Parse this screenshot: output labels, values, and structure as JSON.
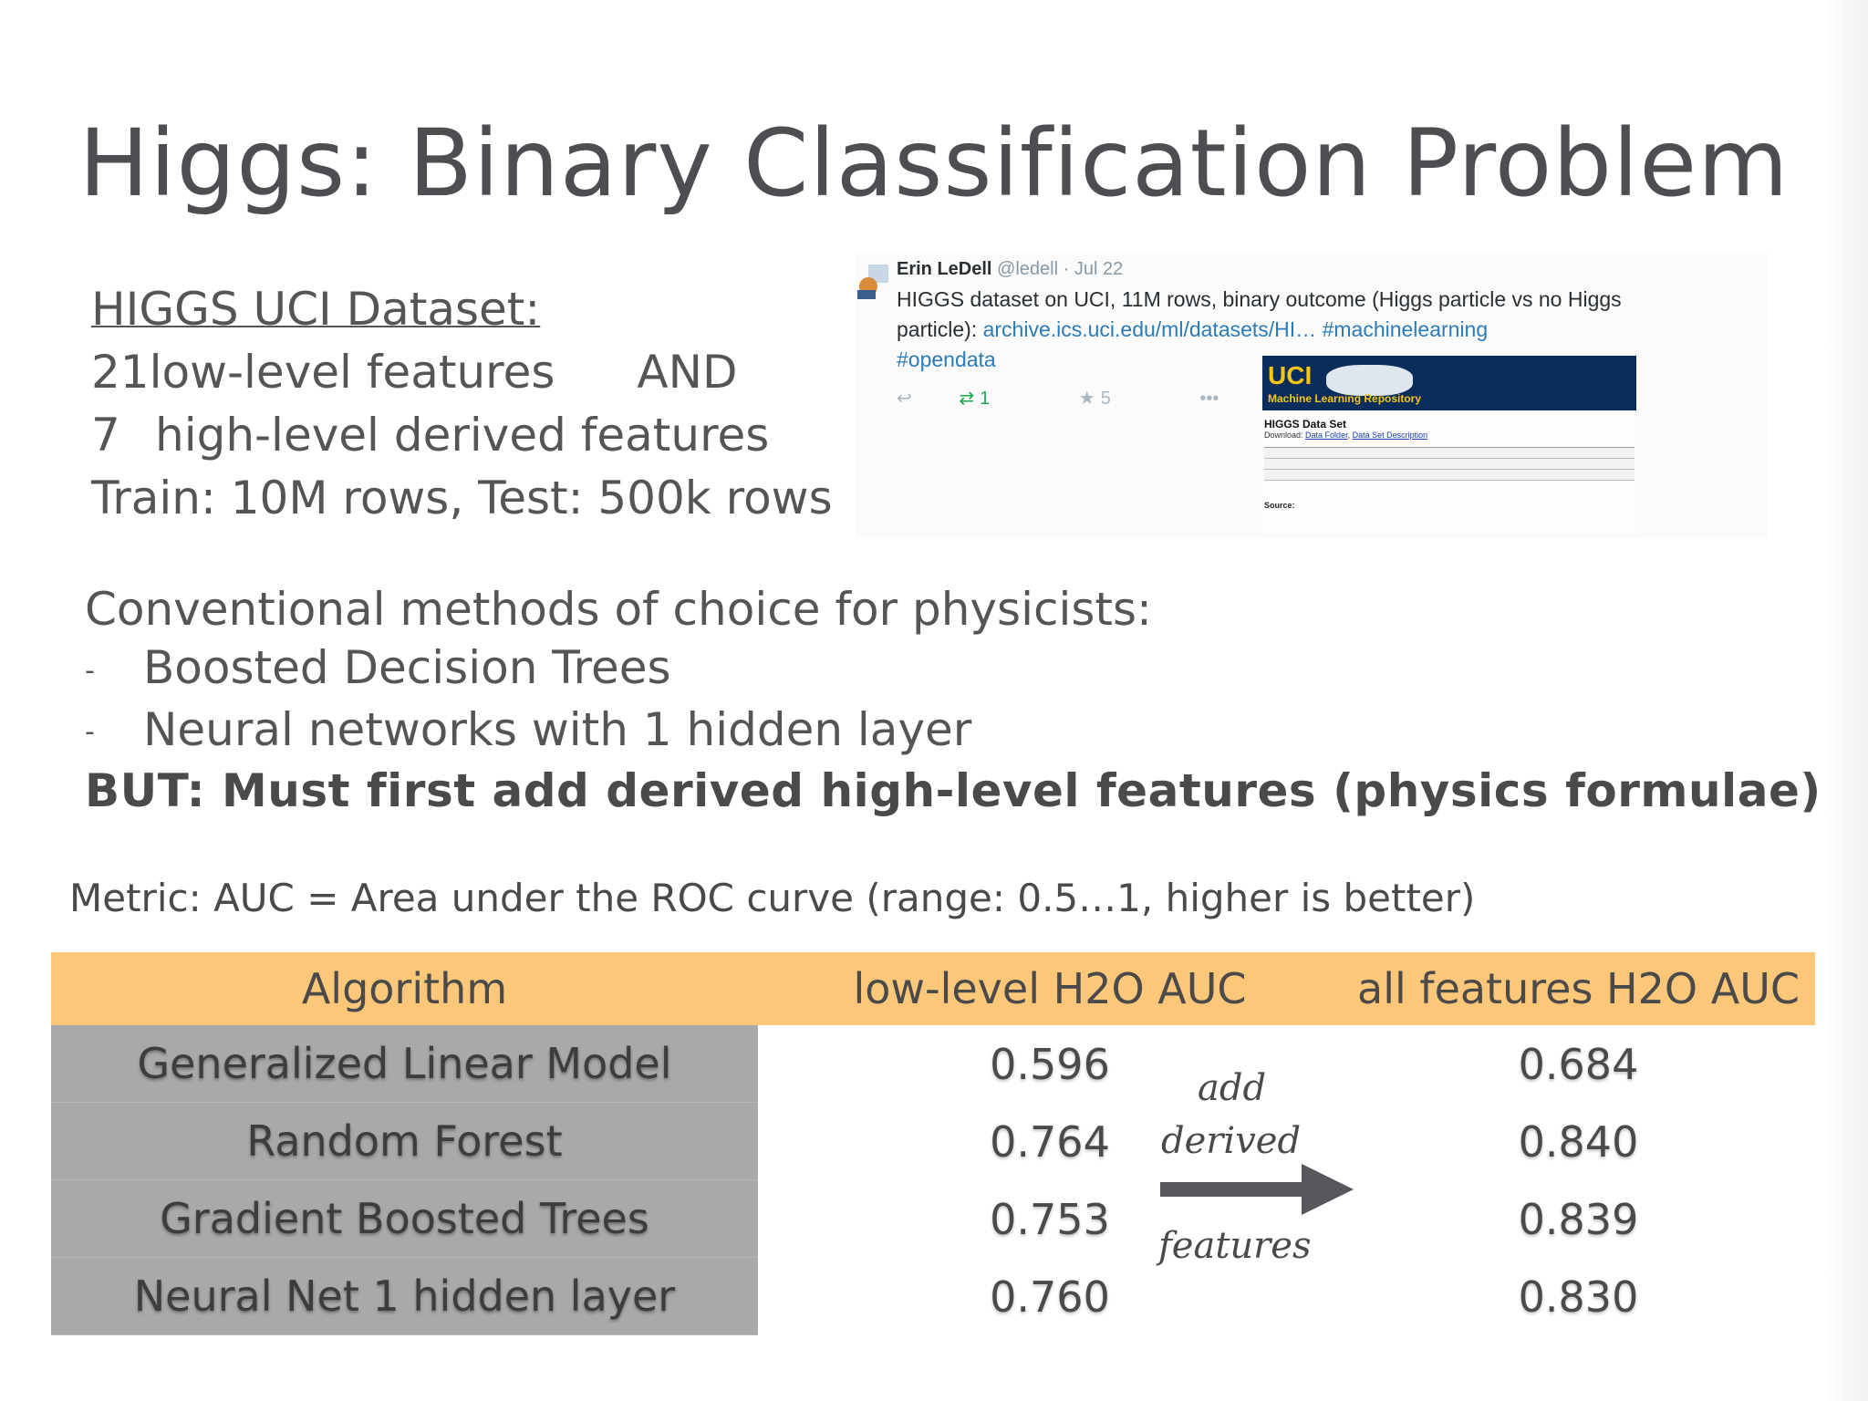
{
  "title": "Higgs: Binary Classification Problem",
  "dataset": {
    "heading": "HIGGS UCI Dataset:",
    "line1_num": "21",
    "line1_text": "low-level features",
    "line1_and": "AND",
    "line2_num": "7",
    "line2_text": "high-level derived features",
    "line3": "Train: 10M rows, Test: 500k rows"
  },
  "methods": {
    "intro": "Conventional methods of choice for physicists:",
    "bullets": [
      "Boosted Decision Trees",
      "Neural networks with 1 hidden layer"
    ],
    "bullet_marker": "-",
    "but": "BUT: Must first add derived high-level features (physics formulae)"
  },
  "metric": "Metric: AUC = Area under the ROC curve (range: 0.5…1, higher is better)",
  "tweet": {
    "name": "Erin LeDell",
    "handle": "@ledell",
    "date": "Jul 22",
    "text": "HIGGS dataset on UCI, 11M rows, binary outcome (Higgs particle vs no Higgs particle):",
    "link": "archive.ics.uci.edu/ml/datasets/HI…",
    "hashtag1": "#machinelearning",
    "hashtag2": "#opendata",
    "retweets": "1",
    "favorites": "5",
    "uci": {
      "logo": "UCI",
      "repo": "Machine Learning Repository",
      "dataset_name": "HIGGS Data Set",
      "download": "Download:",
      "folder_link": "Data Folder",
      "desc_link": "Data Set Description",
      "source": "Source:"
    }
  },
  "table": {
    "headers": [
      "Algorithm",
      "low-level H2O AUC",
      "all features H2O AUC"
    ],
    "rows": [
      [
        "Generalized Linear Model",
        "0.596",
        "0.684"
      ],
      [
        "Random Forest",
        "0.764",
        "0.840"
      ],
      [
        "Gradient Boosted Trees",
        "0.753",
        "0.839"
      ],
      [
        "Neural Net 1 hidden layer",
        "0.760",
        "0.830"
      ]
    ]
  },
  "annotation": {
    "line1": "add",
    "line2": "derived",
    "line3": "features"
  },
  "colors": {
    "header_bg": "#fdc779",
    "algo_bg": "#a9a9ab",
    "text": "#4a4a4a"
  }
}
